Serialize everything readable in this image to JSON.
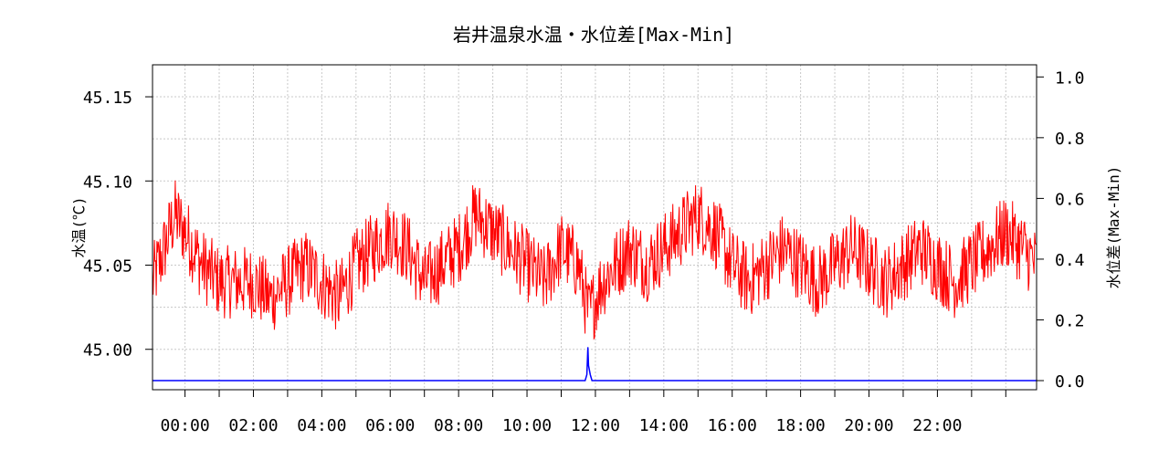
{
  "chart_data": {
    "type": "line",
    "title": "岩井温泉水温・水位差[Max-Min]",
    "ylabel": "水温(℃)",
    "y2label": "水位差(Max-Min)",
    "x_ticks": [
      "00:00",
      "02:00",
      "04:00",
      "06:00",
      "08:00",
      "10:00",
      "12:00",
      "14:00",
      "16:00",
      "18:00",
      "20:00",
      "22:00"
    ],
    "x_unit": "hour",
    "xlim": [
      -0.95,
      24.9
    ],
    "ylim": [
      44.976,
      45.169
    ],
    "y_ticks": [
      "45.00",
      "45.05",
      "45.10",
      "45.15"
    ],
    "y2lim": [
      -0.03,
      1.04
    ],
    "y2_ticks": [
      "0.0",
      "0.2",
      "0.4",
      "0.6",
      "0.8",
      "1.0"
    ],
    "grid": true,
    "series": [
      {
        "color": "#ff0000",
        "axis": "left",
        "x": [
          -0.95,
          -0.6,
          -0.3,
          0.0,
          0.5,
          1.0,
          1.5,
          2.0,
          2.5,
          3.0,
          3.5,
          4.0,
          4.5,
          5.0,
          5.5,
          6.0,
          6.5,
          7.0,
          7.5,
          8.0,
          8.5,
          9.0,
          9.5,
          10.0,
          10.5,
          11.0,
          11.5,
          11.8,
          12.2,
          12.6,
          13.0,
          13.5,
          14.0,
          14.5,
          15.0,
          15.5,
          16.0,
          16.5,
          17.0,
          17.5,
          18.0,
          18.5,
          19.0,
          19.5,
          20.0,
          20.5,
          21.0,
          21.5,
          22.0,
          22.5,
          23.0,
          23.5,
          24.0,
          24.5,
          24.9
        ],
        "values": [
          45.04,
          45.06,
          45.08,
          45.07,
          45.05,
          45.04,
          45.04,
          45.04,
          45.03,
          45.04,
          45.05,
          45.04,
          45.03,
          45.05,
          45.06,
          45.07,
          45.06,
          45.04,
          45.05,
          45.06,
          45.08,
          45.07,
          45.06,
          45.05,
          45.04,
          45.06,
          45.05,
          45.02,
          45.04,
          45.05,
          45.06,
          45.05,
          45.06,
          45.07,
          45.08,
          45.07,
          45.05,
          45.04,
          45.05,
          45.06,
          45.05,
          45.04,
          45.05,
          45.06,
          45.05,
          45.04,
          45.05,
          45.06,
          45.05,
          45.04,
          45.05,
          45.06,
          45.07,
          45.06,
          45.05
        ],
        "noise": 0.022
      },
      {
        "color": "#0000ff",
        "axis": "right",
        "x": [
          -0.95,
          11.7,
          11.75,
          11.78,
          11.8,
          11.85,
          11.9,
          24.9
        ],
        "values": [
          0.0,
          0.0,
          0.02,
          0.11,
          0.05,
          0.02,
          0.0,
          0.0
        ]
      }
    ]
  }
}
